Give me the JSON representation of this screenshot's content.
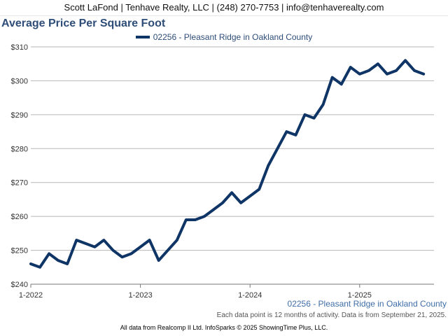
{
  "header": {
    "contact": "Scott LaFond | Tenhave Realty, LLC | (248) 270-7753 | info@tenhaverealty.com"
  },
  "footer": {
    "series_label": "02256 - Pleasant Ridge in Oakland County",
    "note": "Each data point is 12 months of activity. Data is from September 21, 2025.",
    "source": "All data from Realcomp II Ltd. InfoSparks © 2025 ShowingTime Plus, LLC."
  },
  "colors": {
    "series": "#0f3566",
    "title": "#2e4d78",
    "grid": "#b7b7b7"
  },
  "chart_data": {
    "type": "line",
    "title": "Average Price Per Square Foot",
    "legend_position": "top-center",
    "grid": true,
    "ylim": [
      240,
      310
    ],
    "y_ticks": [
      240,
      250,
      260,
      270,
      280,
      290,
      300,
      310
    ],
    "y_tick_labels": [
      "$240",
      "$250",
      "$260",
      "$270",
      "$280",
      "$290",
      "$300",
      "$310"
    ],
    "x_ticks": [
      "2022-01",
      "2023-01",
      "2024-01",
      "2025-01"
    ],
    "x_tick_labels": [
      "1-2022",
      "1-2023",
      "1-2024",
      "1-2025"
    ],
    "x": [
      "2022-01",
      "2022-02",
      "2022-03",
      "2022-04",
      "2022-05",
      "2022-06",
      "2022-07",
      "2022-08",
      "2022-09",
      "2022-10",
      "2022-11",
      "2022-12",
      "2023-01",
      "2023-02",
      "2023-03",
      "2023-04",
      "2023-05",
      "2023-06",
      "2023-07",
      "2023-08",
      "2023-09",
      "2023-10",
      "2023-11",
      "2023-12",
      "2024-01",
      "2024-02",
      "2024-03",
      "2024-04",
      "2024-05",
      "2024-06",
      "2024-07",
      "2024-08",
      "2024-09",
      "2024-10",
      "2024-11",
      "2024-12",
      "2025-01",
      "2025-02",
      "2025-03",
      "2025-04",
      "2025-05",
      "2025-06",
      "2025-07",
      "2025-08"
    ],
    "series": [
      {
        "name": "02256 - Pleasant Ridge in Oakland County",
        "values": [
          246,
          245,
          249,
          247,
          246,
          253,
          252,
          251,
          253,
          250,
          248,
          249,
          251,
          253,
          247,
          250,
          253,
          259,
          259,
          260,
          262,
          264,
          267,
          264,
          266,
          268,
          275,
          280,
          285,
          284,
          290,
          289,
          293,
          301,
          299,
          304,
          302,
          303,
          305,
          302,
          303,
          306,
          303,
          302
        ]
      }
    ]
  }
}
